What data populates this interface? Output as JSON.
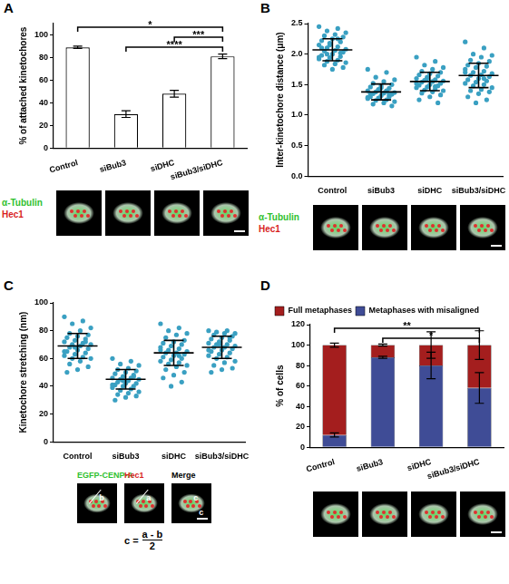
{
  "chart_data": [
    {
      "panel": "A",
      "type": "bar",
      "categories": [
        "Control",
        "siBub3",
        "siDHC",
        "siBub3/siDHC"
      ],
      "values": [
        89,
        30,
        48,
        81
      ],
      "errors": [
        1,
        3,
        3,
        2
      ],
      "color": "#ffffff",
      "grid": false,
      "y_label": "% of attached kinetochores",
      "ylim": [
        0,
        110
      ],
      "yticks": [
        0,
        20,
        40,
        60,
        80,
        100
      ],
      "significance": [
        {
          "from": "Control",
          "to": "siBub3/siDHC",
          "label": "*"
        },
        {
          "from": "siDHC",
          "to": "siBub3/siDHC",
          "label": "***"
        },
        {
          "from": "siBub3",
          "to": "siBub3/siDHC",
          "label": "****"
        }
      ],
      "image_labels": [
        {
          "text": "α-Tubulin",
          "color": "#2fbf2f"
        },
        {
          "text": "Hec1",
          "color": "#d81e1e"
        }
      ]
    },
    {
      "panel": "B",
      "type": "scatter",
      "categories": [
        "Control",
        "siBub3",
        "siDHC",
        "siBub3/siDHC"
      ],
      "values": [
        [
          2.45,
          2.42,
          2.38,
          2.35,
          2.32,
          2.3,
          2.28,
          2.25,
          2.22,
          2.2,
          2.18,
          2.15,
          2.12,
          2.1,
          2.08,
          2.06,
          2.05,
          2.03,
          2.0,
          1.98,
          1.96,
          1.94,
          1.92,
          1.9,
          1.88,
          1.86,
          1.84,
          1.82,
          1.78,
          1.75,
          2.1,
          2.02,
          2.15,
          1.95,
          2.25,
          2.0
        ],
        [
          1.75,
          1.7,
          1.62,
          1.58,
          1.55,
          1.52,
          1.5,
          1.48,
          1.46,
          1.44,
          1.42,
          1.4,
          1.4,
          1.38,
          1.37,
          1.36,
          1.35,
          1.34,
          1.32,
          1.3,
          1.3,
          1.28,
          1.27,
          1.25,
          1.24,
          1.22,
          1.2,
          1.18,
          1.15,
          1.45,
          1.35,
          1.33,
          1.41,
          1.29,
          1.39
        ],
        [
          1.95,
          1.88,
          1.82,
          1.78,
          1.75,
          1.72,
          1.7,
          1.68,
          1.66,
          1.64,
          1.62,
          1.6,
          1.58,
          1.57,
          1.56,
          1.55,
          1.54,
          1.52,
          1.5,
          1.49,
          1.48,
          1.46,
          1.45,
          1.43,
          1.41,
          1.4,
          1.38,
          1.36,
          1.33,
          1.3,
          1.25,
          1.2,
          1.6,
          1.52,
          1.47
        ],
        [
          2.2,
          2.1,
          2.0,
          1.98,
          1.95,
          1.9,
          1.88,
          1.85,
          1.82,
          1.8,
          1.78,
          1.75,
          1.72,
          1.7,
          1.68,
          1.66,
          1.65,
          1.63,
          1.6,
          1.58,
          1.56,
          1.54,
          1.52,
          1.5,
          1.48,
          1.45,
          1.42,
          1.4,
          1.38,
          1.35,
          1.3,
          1.25,
          1.2,
          1.7,
          1.6
        ]
      ],
      "means": [
        2.07,
        1.38,
        1.55,
        1.65
      ],
      "sd": [
        0.18,
        0.13,
        0.15,
        0.2
      ],
      "color": "#3aa0c2",
      "marker": "circle",
      "grid": false,
      "y_label": "Inter-kinetochore distance (μm)",
      "ylim": [
        0,
        2.5
      ],
      "yticks": [
        {
          "value": 0,
          "label": "0.0"
        },
        0.5,
        {
          "value": 1,
          "label": "1.0"
        },
        1.5,
        {
          "value": 2,
          "label": "2.0"
        },
        2.5
      ],
      "image_labels": [
        {
          "text": "α-Tubulin",
          "color": "#2fbf2f"
        },
        {
          "text": "Hec1",
          "color": "#d81e1e"
        }
      ]
    },
    {
      "panel": "C",
      "type": "scatter",
      "categories": [
        "Control",
        "siBub3",
        "siDHC",
        "siBub3/siDHC"
      ],
      "values": [
        [
          90,
          87,
          85,
          82,
          80,
          78,
          77,
          76,
          75,
          74,
          73,
          72,
          71,
          70,
          70,
          69,
          68,
          67,
          66,
          65,
          64,
          63,
          62,
          61,
          60,
          60,
          58,
          56,
          54,
          52,
          50,
          72,
          68,
          65
        ],
        [
          60,
          58,
          56,
          55,
          53,
          52,
          51,
          50,
          49,
          48,
          47,
          46,
          46,
          45,
          45,
          44,
          43,
          42,
          42,
          41,
          40,
          40,
          39,
          38,
          37,
          36,
          35,
          34,
          33,
          32,
          30,
          47,
          44,
          41
        ],
        [
          85,
          82,
          80,
          78,
          77,
          75,
          73,
          72,
          71,
          70,
          69,
          68,
          67,
          66,
          65,
          64,
          64,
          63,
          62,
          61,
          60,
          59,
          58,
          57,
          56,
          55,
          54,
          52,
          50,
          48,
          46,
          43,
          40,
          66,
          62
        ],
        [
          80,
          80,
          79,
          78,
          78,
          77,
          76,
          75,
          74,
          73,
          72,
          71,
          70,
          70,
          69,
          68,
          68,
          67,
          66,
          65,
          64,
          63,
          62,
          61,
          60,
          58,
          57,
          55,
          53,
          52,
          50,
          75,
          70,
          66
        ]
      ],
      "means": [
        69,
        45,
        64,
        68
      ],
      "sd": [
        9,
        7,
        9,
        8
      ],
      "color": "#3aa0c2",
      "marker": "circle",
      "grid": false,
      "y_label": "Kinetochore stretching (nm)",
      "ylim": [
        0,
        100
      ],
      "yticks": [
        0,
        20,
        40,
        60,
        80,
        100
      ],
      "image_labels": [
        {
          "text": "EGFP-CENP-A",
          "color": "#2fbf2f"
        },
        {
          "text": "Hec1",
          "color": "#d81e1e"
        },
        {
          "text": "Merge",
          "color": "#000000"
        }
      ],
      "image_marks": [
        [
          "b"
        ],
        [
          "a"
        ],
        [
          "c",
          "c"
        ]
      ],
      "formula": {
        "left": "c =",
        "numerator": "a - b",
        "denominator": "2"
      }
    },
    {
      "panel": "D",
      "type": "bar",
      "stacked": true,
      "legend": "top",
      "grid": false,
      "categories": [
        "Control",
        "siBub3",
        "siDHC",
        "siBub3/siDHC"
      ],
      "series": [
        {
          "name": "Metaphases with misaligned",
          "color": "#3f4c96",
          "values": [
            12,
            88,
            80,
            58
          ],
          "errors": [
            2,
            1,
            13,
            15
          ]
        },
        {
          "name": "Full metaphases",
          "color": "#a41e1e",
          "values": [
            88,
            12,
            20,
            42
          ],
          "errors": [
            2,
            1,
            13,
            14
          ]
        }
      ],
      "y_label": "% of cells",
      "ylim": [
        0,
        120
      ],
      "yticks": [
        0,
        20,
        40,
        60,
        80,
        100,
        120
      ],
      "significance": [
        {
          "from": "Control",
          "to": "siBub3/siDHC",
          "label": "**"
        },
        {
          "from": "siBub3",
          "to": "siBub3/siDHC",
          "label": "*"
        }
      ]
    }
  ]
}
